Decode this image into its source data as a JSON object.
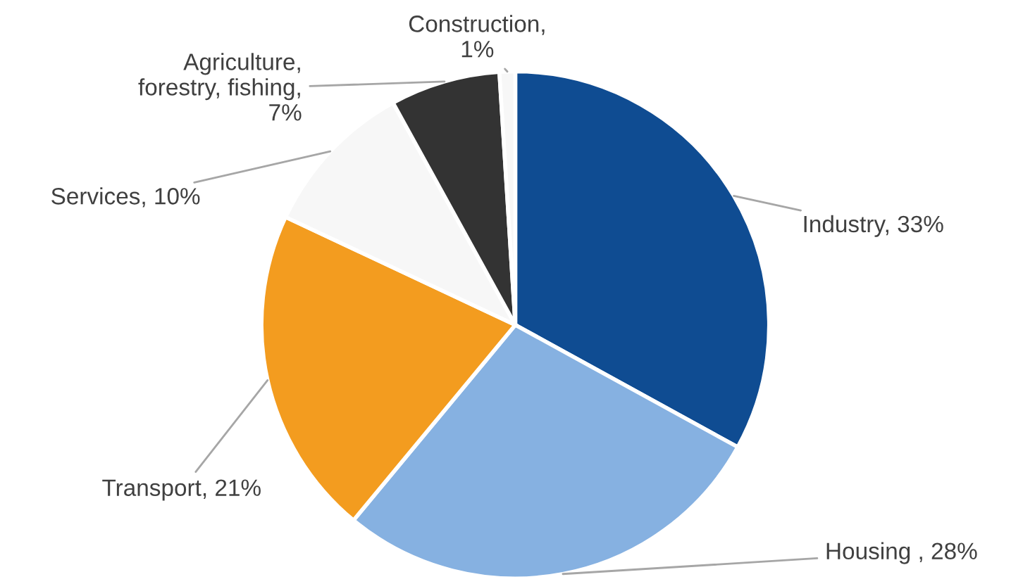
{
  "chart_data": {
    "type": "pie",
    "categories": [
      "Industry",
      "Housing ",
      "Transport",
      "Services",
      "Agriculture,\nforestry, fishing",
      "Construction"
    ],
    "values": [
      33,
      28,
      21,
      10,
      7,
      1
    ],
    "colors": [
      "#0f4c92",
      "#86b1e1",
      "#f39c1f",
      "#f7f7f7",
      "#333333",
      "#f7f7f7"
    ],
    "value_labels": [
      ", 33%",
      ", 28%",
      ", 21%",
      ", 10%",
      ",\n7%",
      ",\n1%"
    ],
    "legend": false
  }
}
